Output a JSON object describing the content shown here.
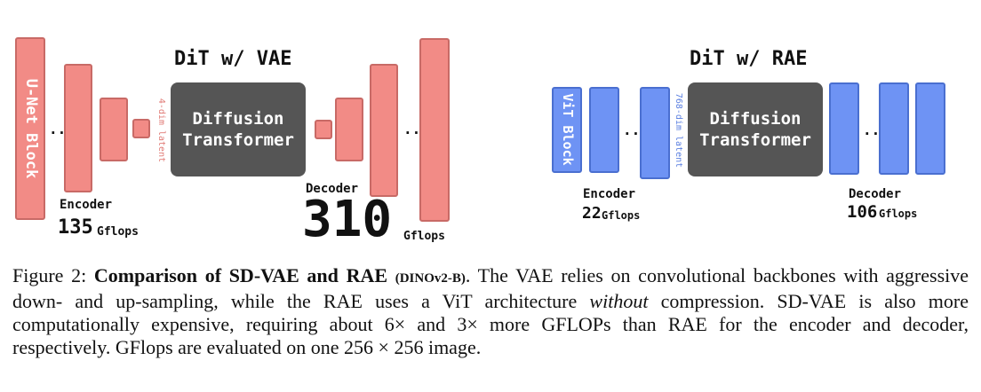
{
  "vae_diagram": {
    "title": "DiT w/ VAE",
    "unet_label": "U-Net Block",
    "latent_label": "4-dim latent",
    "core_label_line1": "Diffusion",
    "core_label_line2": "Transformer",
    "encoder_label": "Encoder",
    "encoder_gflops": "135",
    "decoder_label": "Decoder",
    "decoder_gflops": "310",
    "gflops_unit": "Gflops",
    "dots": "..."
  },
  "rae_diagram": {
    "title": "DiT w/ RAE",
    "vit_label": "ViT Block",
    "latent_label": "768-dim latent",
    "core_label_line1": "Diffusion",
    "core_label_line2": "Transformer",
    "encoder_label": "Encoder",
    "encoder_gflops": "22",
    "decoder_label": "Decoder",
    "decoder_gflops": "106",
    "gflops_unit": "Gflops",
    "dots": "..."
  },
  "caption": {
    "prefix": "Figure 2: ",
    "bold_title": "Comparison of SD-VAE and RAE",
    "bold_small": "(DINOv2-B)",
    "text_1": ". The VAE relies on convolutional backbones with aggressive down- and up-sampling, while the RAE uses a ViT architecture ",
    "italic": "without",
    "text_2": " compression. SD-VAE is also more computationally expensive, requiring about 6× and 3× more GFLOPs than RAE for the encoder and decoder, respectively. GFlops are evaluated on one 256 × 256 image."
  },
  "colors": {
    "vae_block": "#F28B86",
    "rae_block": "#6E93F4",
    "transformer": "#555555",
    "vae_latent_text": "#E07A75",
    "rae_latent_text": "#5A7FE0"
  }
}
